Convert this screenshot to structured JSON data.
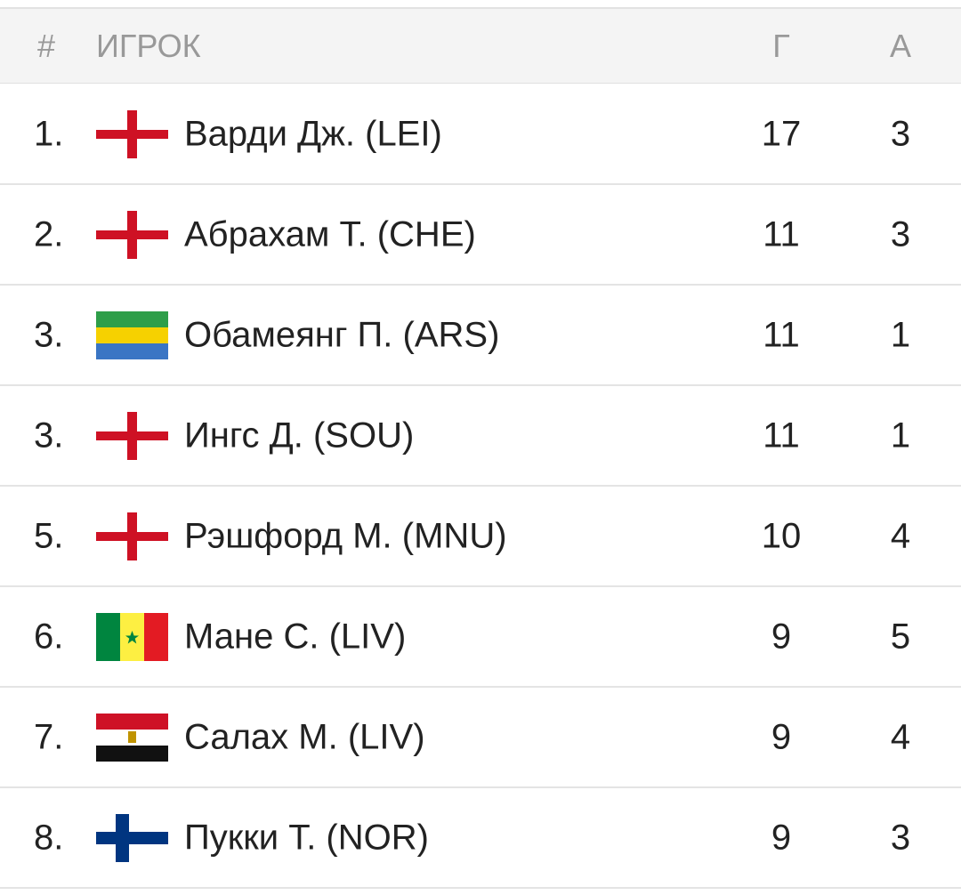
{
  "header": {
    "rank": "#",
    "player": "ИГРОК",
    "goals": "Г",
    "assists": "А"
  },
  "rows": [
    {
      "rank": "1.",
      "player": "Варди Дж. (LEI)",
      "goals": 17,
      "assists": 3
    },
    {
      "rank": "2.",
      "player": "Абрахам Т. (CHE)",
      "goals": 11,
      "assists": 3
    },
    {
      "rank": "3.",
      "player": "Обамеянг П. (ARS)",
      "goals": 11,
      "assists": 1
    },
    {
      "rank": "3.",
      "player": "Ингс Д. (SOU)",
      "goals": 11,
      "assists": 1
    },
    {
      "rank": "5.",
      "player": "Рэшфорд М. (MNU)",
      "goals": 10,
      "assists": 4
    },
    {
      "rank": "6.",
      "player": "Мане С. (LIV)",
      "goals": 9,
      "assists": 5
    },
    {
      "rank": "7.",
      "player": "Салах М. (LIV)",
      "goals": 9,
      "assists": 4
    },
    {
      "rank": "8.",
      "player": "Пукки Т. (NOR)",
      "goals": 9,
      "assists": 3
    }
  ]
}
